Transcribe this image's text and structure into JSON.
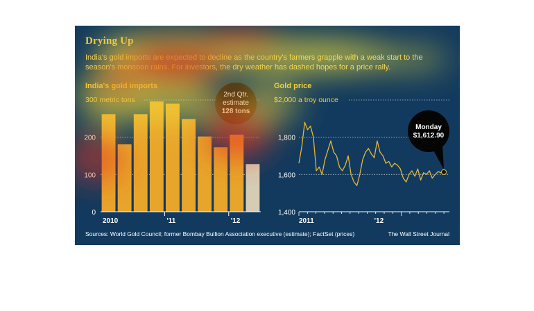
{
  "header": {
    "title": "Drying Up",
    "subtitle": "India's gold imports are expected to decline as the country's farmers grapple with a weak start to the season's monsoon rains. For investors, the dry weather has dashed hopes for a price rally."
  },
  "footer": {
    "sources": "Sources: World Gold Council; former Bombay Bullion Association executive (estimate); FactSet (prices)",
    "credit": "The Wall Street Journal"
  },
  "colors": {
    "background": "#123a5e",
    "bar": "#e8a52c",
    "estimate_bar": "#d6ccb4",
    "line": "#e9b737",
    "heat_hot": "#e3361c",
    "heat_warm": "#f5e13a"
  },
  "chart_data": [
    {
      "type": "bar",
      "title": "India's gold imports",
      "unit_label": "300 metric tons",
      "ylim": [
        0,
        300
      ],
      "yticks": [
        0,
        100,
        200
      ],
      "ytick_labels": [
        "0",
        "100",
        "200"
      ],
      "x_labels": [
        {
          "label": "2010",
          "at_bar": 0
        },
        {
          "label": "'11",
          "at_bar": 4
        },
        {
          "label": "'12",
          "at_bar": 8
        }
      ],
      "values": [
        262,
        181,
        262,
        296,
        290,
        249,
        202,
        173,
        207,
        128
      ],
      "estimate_index": 9,
      "callout": {
        "lines": [
          "2nd Qtr.",
          "estimate",
          "128 tons"
        ]
      }
    },
    {
      "type": "line",
      "title": "Gold price",
      "unit_label": "$2,000 a troy ounce",
      "ylim": [
        1400,
        2000
      ],
      "yticks": [
        1400,
        1600,
        1800
      ],
      "ytick_labels": [
        "1,400",
        "1,600",
        "1,800"
      ],
      "x_labels": [
        {
          "label": "2011",
          "x": 0.0
        },
        {
          "label": "'12",
          "x": 0.52
        }
      ],
      "x": [
        0.0,
        0.02,
        0.04,
        0.06,
        0.08,
        0.1,
        0.12,
        0.14,
        0.16,
        0.18,
        0.2,
        0.22,
        0.24,
        0.26,
        0.28,
        0.3,
        0.32,
        0.34,
        0.36,
        0.38,
        0.4,
        0.42,
        0.44,
        0.46,
        0.48,
        0.5,
        0.52,
        0.54,
        0.56,
        0.58,
        0.6,
        0.62,
        0.64,
        0.66,
        0.68,
        0.7,
        0.72,
        0.74,
        0.76,
        0.78,
        0.8,
        0.82,
        0.84,
        0.86,
        0.88,
        0.9,
        0.92,
        0.94,
        0.96,
        0.98,
        1.0
      ],
      "y": [
        1660,
        1750,
        1880,
        1840,
        1860,
        1800,
        1620,
        1640,
        1600,
        1680,
        1730,
        1780,
        1720,
        1700,
        1640,
        1620,
        1650,
        1700,
        1600,
        1560,
        1540,
        1600,
        1680,
        1720,
        1740,
        1710,
        1690,
        1780,
        1720,
        1700,
        1660,
        1670,
        1640,
        1660,
        1650,
        1630,
        1580,
        1560,
        1600,
        1620,
        1590,
        1630,
        1570,
        1610,
        1600,
        1620,
        1580,
        1600,
        1615,
        1610,
        1613
      ],
      "last_value": 1612.9,
      "callout": {
        "lines": [
          "Monday",
          "$1,612.90"
        ]
      }
    }
  ]
}
